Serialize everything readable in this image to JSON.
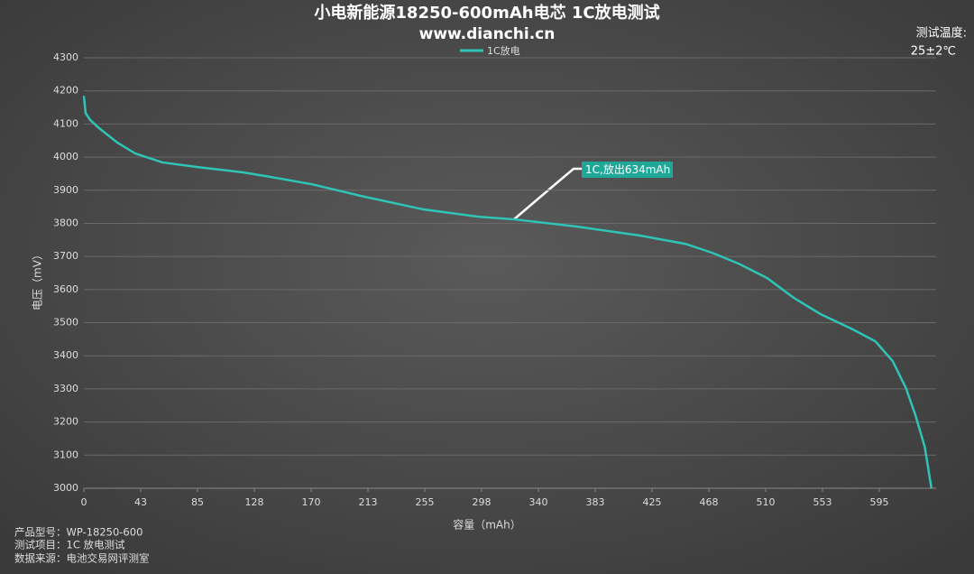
{
  "chart_data": {
    "type": "line",
    "title": "小电新能源18250-600mAh电芯 1C放电测试",
    "subtitle": "www.dianchi.cn",
    "x_label": "容量（mAh）",
    "y_label": "电压（mV）",
    "temperature_label": "测试温度:",
    "temperature": "25±2℃",
    "annotation": "1C,放出634mAh",
    "info": [
      "产品型号：WP-18250-600",
      "测试项目：1C 放电测试",
      "数据来源：电池交易网评测室"
    ],
    "x": [
      0,
      1.3,
      4.7,
      11.5,
      25,
      38.4,
      58.7,
      85,
      119,
      140,
      170.7,
      207,
      254,
      295,
      322,
      369,
      416,
      450,
      470,
      490,
      511,
      531,
      551,
      575,
      592,
      605,
      615,
      622,
      629,
      634
    ],
    "series": [
      {
        "name": "1C放电",
        "color": "#2ec4b6",
        "values": [
          4185,
          4133,
          4112,
          4087,
          4044,
          4011,
          3984,
          3970,
          3954,
          3940,
          3918,
          3883,
          3842,
          3820,
          3812,
          3790,
          3763,
          3738,
          3711,
          3678,
          3635,
          3575,
          3526,
          3480,
          3444,
          3384,
          3302,
          3221,
          3125,
          3000
        ]
      }
    ],
    "xlim": [
      0,
      637.5
    ],
    "xticks": [
      0,
      {
        "value": 42.5,
        "label": "43"
      },
      85,
      {
        "value": 127.5,
        "label": "128"
      },
      170,
      {
        "value": 212.5,
        "label": "213"
      },
      255,
      {
        "value": 297.5,
        "label": "298"
      },
      340,
      {
        "value": 382.5,
        "label": "383"
      },
      425,
      {
        "value": 467.5,
        "label": "468"
      },
      510,
      {
        "value": 552.5,
        "label": "553"
      },
      595
    ],
    "ylim": [
      3000,
      4300
    ],
    "yticks": [
      3000,
      3100,
      3200,
      3300,
      3400,
      3500,
      3600,
      3700,
      3800,
      3900,
      4000,
      4100,
      4200,
      4300
    ],
    "grid": true
  }
}
